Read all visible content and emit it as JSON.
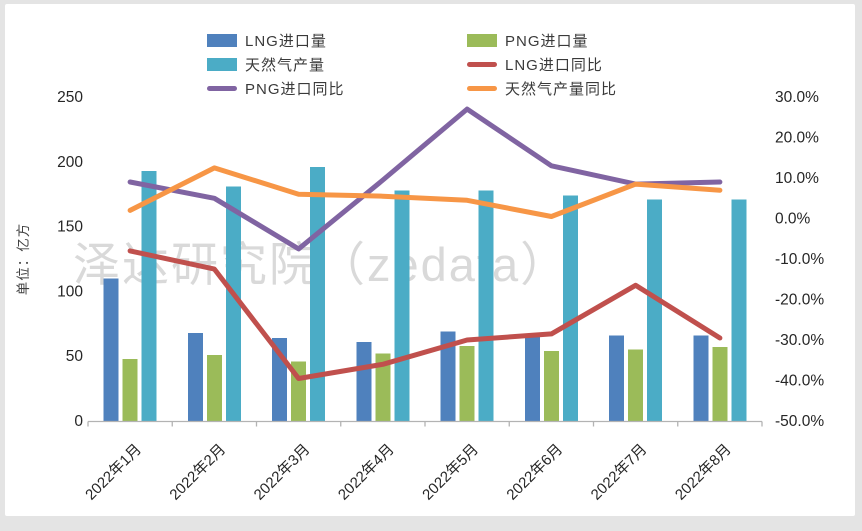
{
  "watermark": "泽达研究院（zedata）",
  "legend": {
    "items": [
      {
        "label": "LNG进口量",
        "swatch": "bar",
        "color": "#4f81bd"
      },
      {
        "label": "PNG进口量",
        "swatch": "bar",
        "color": "#9bbb59"
      },
      {
        "label": "天然气产量",
        "swatch": "bar",
        "color": "#4bacc6"
      },
      {
        "label": "LNG进口同比",
        "swatch": "line",
        "color": "#c0504d"
      },
      {
        "label": "PNG进口同比",
        "swatch": "line",
        "color": "#8064a2"
      },
      {
        "label": "天然气产量同比",
        "swatch": "line",
        "color": "#f79646"
      }
    ]
  },
  "chart_data": {
    "type": "combo-bar-line",
    "categories": [
      "2022年1月",
      "2022年2月",
      "2022年3月",
      "2022年4月",
      "2022年5月",
      "2022年6月",
      "2022年7月",
      "2022年8月"
    ],
    "bar_series": [
      {
        "name": "LNG进口量",
        "color": "#4f81bd",
        "axis": "left",
        "values": [
          110,
          68,
          64,
          61,
          69,
          65,
          66,
          66
        ]
      },
      {
        "name": "PNG进口量",
        "color": "#9bbb59",
        "axis": "left",
        "values": [
          48,
          51,
          46,
          52,
          58,
          54,
          55,
          57
        ]
      },
      {
        "name": "天然气产量",
        "color": "#4bacc6",
        "axis": "left",
        "values": [
          193,
          181,
          196,
          178,
          178,
          174,
          171,
          171
        ]
      }
    ],
    "line_series": [
      {
        "name": "LNG进口同比",
        "color": "#c0504d",
        "axis": "right",
        "values_pct": [
          -8,
          -12.5,
          -39.5,
          -36,
          -30,
          -28.5,
          -16.5,
          -29.5
        ]
      },
      {
        "name": "PNG进口同比",
        "color": "#8064a2",
        "axis": "right",
        "values_pct": [
          9,
          5,
          -7.5,
          9.5,
          27,
          13,
          8.5,
          9
        ]
      },
      {
        "name": "天然气产量同比",
        "color": "#f79646",
        "axis": "right",
        "values_pct": [
          2,
          12.5,
          6,
          5.5,
          4.5,
          0.5,
          8.5,
          7
        ]
      }
    ],
    "left_axis": {
      "title": "单位：亿方",
      "min": 0,
      "max": 250,
      "tick_step": 50,
      "tick_labels": [
        "0",
        "50",
        "100",
        "150",
        "200",
        "250"
      ]
    },
    "right_axis": {
      "min": -50,
      "max": 30,
      "tick_step": 10,
      "tick_labels": [
        "-50.0%",
        "-40.0%",
        "-30.0%",
        "-20.0%",
        "-10.0%",
        "0.0%",
        "10.0%",
        "20.0%",
        "30.0%"
      ]
    },
    "grid": false,
    "legend_position": "top"
  }
}
